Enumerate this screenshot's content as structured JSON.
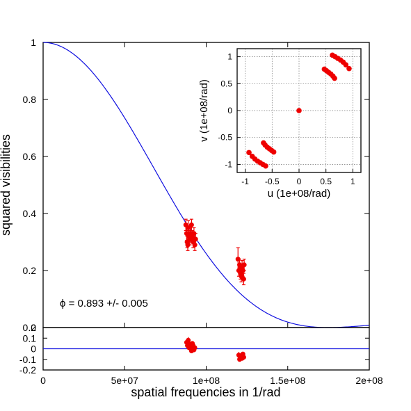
{
  "chart_data": [
    {
      "type": "scatter",
      "panel": "main",
      "xlabel": "spatial frequencies in 1/rad",
      "ylabel": "squared visibilities",
      "xlim": [
        0,
        200000000
      ],
      "ylim": [
        0,
        1
      ],
      "x_ticks": [
        "0",
        "5e+07",
        "1e+08",
        "1.5e+08",
        "2e+08"
      ],
      "y_ticks": [
        "0",
        "0.2",
        "0.4",
        "0.6",
        "0.8",
        "1"
      ],
      "grid": false,
      "annotation": "ϕ =  0.893  +/-  0.005",
      "model_curve": {
        "color": "#1010e0",
        "description": "uniform disk fit"
      },
      "points": [
        {
          "x": 87500000,
          "y": 0.36,
          "err": 0.02
        },
        {
          "x": 88000000,
          "y": 0.33,
          "err": 0.025
        },
        {
          "x": 88300000,
          "y": 0.3,
          "err": 0.02
        },
        {
          "x": 88700000,
          "y": 0.29,
          "err": 0.02
        },
        {
          "x": 89000000,
          "y": 0.35,
          "err": 0.025
        },
        {
          "x": 89500000,
          "y": 0.32,
          "err": 0.02
        },
        {
          "x": 90000000,
          "y": 0.31,
          "err": 0.02
        },
        {
          "x": 90500000,
          "y": 0.33,
          "err": 0.025
        },
        {
          "x": 91000000,
          "y": 0.36,
          "err": 0.02
        },
        {
          "x": 91500000,
          "y": 0.32,
          "err": 0.02
        },
        {
          "x": 92000000,
          "y": 0.3,
          "err": 0.02
        },
        {
          "x": 92500000,
          "y": 0.33,
          "err": 0.02
        },
        {
          "x": 93000000,
          "y": 0.29,
          "err": 0.02
        },
        {
          "x": 93500000,
          "y": 0.31,
          "err": 0.02
        },
        {
          "x": 119500000,
          "y": 0.24,
          "err": 0.04
        },
        {
          "x": 120000000,
          "y": 0.2,
          "err": 0.02
        },
        {
          "x": 120500000,
          "y": 0.22,
          "err": 0.02
        },
        {
          "x": 121000000,
          "y": 0.19,
          "err": 0.02
        },
        {
          "x": 121500000,
          "y": 0.18,
          "err": 0.02
        },
        {
          "x": 122000000,
          "y": 0.21,
          "err": 0.025
        },
        {
          "x": 122500000,
          "y": 0.2,
          "err": 0.02
        },
        {
          "x": 123000000,
          "y": 0.17,
          "err": 0.02
        },
        {
          "x": 123300000,
          "y": 0.22,
          "err": 0.02
        }
      ],
      "colors": {
        "points": "#ee0000",
        "curve": "#1010e0"
      }
    },
    {
      "type": "scatter",
      "panel": "residuals",
      "xlim": [
        0,
        200000000
      ],
      "ylim": [
        -0.2,
        0.2
      ],
      "y_ticks": [
        "-0.2",
        "-0.1",
        "0",
        "0.1",
        "0.2"
      ],
      "points": [
        {
          "x": 88000000,
          "y": 0.06,
          "err": 0.03
        },
        {
          "x": 88500000,
          "y": 0.03,
          "err": 0.03
        },
        {
          "x": 89000000,
          "y": 0.08,
          "err": 0.03
        },
        {
          "x": 89500000,
          "y": 0.01,
          "err": 0.02
        },
        {
          "x": 90000000,
          "y": 0.04,
          "err": 0.03
        },
        {
          "x": 90500000,
          "y": 0.02,
          "err": 0.02
        },
        {
          "x": 91000000,
          "y": -0.02,
          "err": 0.02
        },
        {
          "x": 91500000,
          "y": 0.05,
          "err": 0.02
        },
        {
          "x": 92000000,
          "y": 0.03,
          "err": 0.02
        },
        {
          "x": 92500000,
          "y": -0.01,
          "err": 0.02
        },
        {
          "x": 93000000,
          "y": 0.01,
          "err": 0.02
        },
        {
          "x": 120000000,
          "y": -0.06,
          "err": 0.03
        },
        {
          "x": 120500000,
          "y": -0.1,
          "err": 0.02
        },
        {
          "x": 121000000,
          "y": -0.07,
          "err": 0.02
        },
        {
          "x": 122000000,
          "y": -0.09,
          "err": 0.02
        },
        {
          "x": 122500000,
          "y": -0.05,
          "err": 0.02
        },
        {
          "x": 123000000,
          "y": -0.08,
          "err": 0.02
        }
      ]
    },
    {
      "type": "scatter",
      "panel": "uv-coverage",
      "xlabel": "u (1e+08/rad)",
      "ylabel": "v (1e+08/rad)",
      "xlim": [
        -1.15,
        1.15
      ],
      "ylim": [
        -1.15,
        1.15
      ],
      "x_ticks": [
        "-1",
        "-0.5",
        "0",
        "0.5",
        "1"
      ],
      "y_ticks": [
        "-1",
        "-0.5",
        "0",
        "0.5",
        "1"
      ],
      "grid": true,
      "points": [
        {
          "u": 0,
          "v": 0
        },
        {
          "u": 0.62,
          "v": 1.03
        },
        {
          "u": 0.67,
          "v": 1.0
        },
        {
          "u": 0.72,
          "v": 0.97
        },
        {
          "u": 0.77,
          "v": 0.94
        },
        {
          "u": 0.82,
          "v": 0.9
        },
        {
          "u": 0.87,
          "v": 0.85
        },
        {
          "u": 0.93,
          "v": 0.78
        },
        {
          "u": 0.47,
          "v": 0.77
        },
        {
          "u": 0.51,
          "v": 0.74
        },
        {
          "u": 0.55,
          "v": 0.71
        },
        {
          "u": 0.59,
          "v": 0.68
        },
        {
          "u": 0.63,
          "v": 0.64
        },
        {
          "u": 0.66,
          "v": 0.6
        },
        {
          "u": -0.62,
          "v": -1.03
        },
        {
          "u": -0.67,
          "v": -1.0
        },
        {
          "u": -0.72,
          "v": -0.97
        },
        {
          "u": -0.77,
          "v": -0.94
        },
        {
          "u": -0.82,
          "v": -0.9
        },
        {
          "u": -0.87,
          "v": -0.85
        },
        {
          "u": -0.93,
          "v": -0.78
        },
        {
          "u": -0.47,
          "v": -0.77
        },
        {
          "u": -0.51,
          "v": -0.74
        },
        {
          "u": -0.55,
          "v": -0.71
        },
        {
          "u": -0.59,
          "v": -0.68
        },
        {
          "u": -0.63,
          "v": -0.64
        },
        {
          "u": -0.66,
          "v": -0.6
        }
      ]
    }
  ]
}
